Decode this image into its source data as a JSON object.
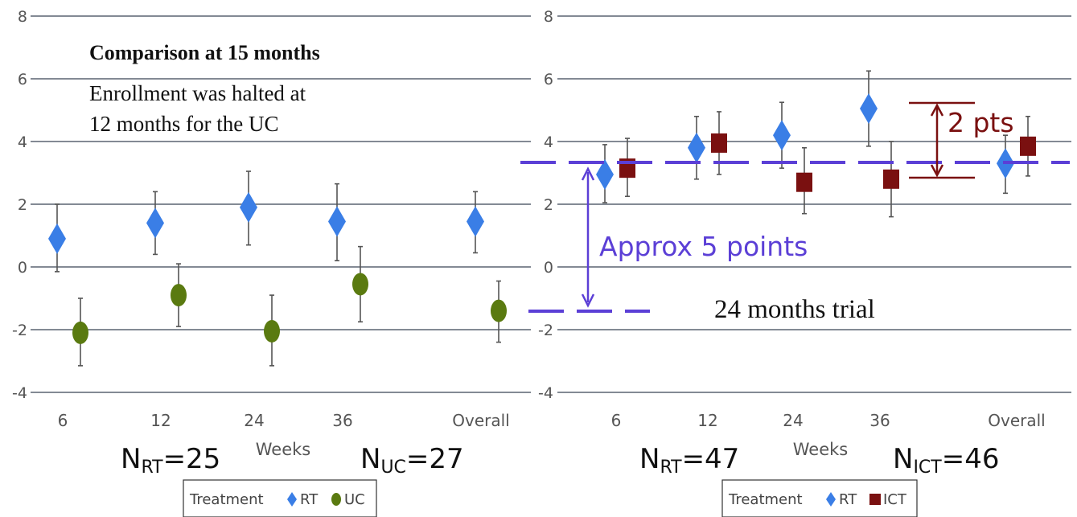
{
  "chart_data": [
    {
      "type": "scatter",
      "panel": "left",
      "categories": [
        "6",
        "12",
        "24",
        "36",
        "Overall"
      ],
      "xlabel": "Weeks",
      "ylim": [
        -4,
        8
      ],
      "yticks": [
        "8",
        "6",
        "4",
        "2",
        "0",
        "-2",
        "-4"
      ],
      "grid": true,
      "series": [
        {
          "name": "RT",
          "marker": "diamond",
          "color": "#3a7ee6",
          "values": [
            0.9,
            1.4,
            1.9,
            1.45,
            1.45
          ],
          "lower": [
            -0.15,
            0.4,
            0.7,
            0.2,
            0.45
          ],
          "upper": [
            2.0,
            2.4,
            3.05,
            2.65,
            2.4
          ]
        },
        {
          "name": "UC",
          "marker": "ellipse",
          "color": "#5a7a10",
          "values": [
            -2.1,
            -0.9,
            -2.05,
            -0.55,
            -1.4
          ],
          "lower": [
            -3.15,
            -1.9,
            -3.15,
            -1.75,
            -2.4
          ],
          "upper": [
            -1.0,
            0.1,
            -0.9,
            0.65,
            -0.45
          ]
        }
      ],
      "legend": {
        "title": "Treatment",
        "position": "bottom"
      },
      "annotations": {
        "heading": "Comparison at 15 months",
        "note_line1": "Enrollment was halted at",
        "note_line2": "12 months for the UC"
      },
      "n_labels": [
        {
          "main": "N",
          "sub": "RT",
          "value": "=25"
        },
        {
          "main": "N",
          "sub": "UC",
          "value": "=27"
        }
      ]
    },
    {
      "type": "scatter",
      "panel": "right",
      "categories": [
        "6",
        "12",
        "24",
        "36",
        "Overall"
      ],
      "xlabel": "Weeks",
      "ylim": [
        -4,
        8
      ],
      "yticks": [
        "8",
        "6",
        "4",
        "2",
        "0",
        "-2",
        "-4"
      ],
      "grid": true,
      "series": [
        {
          "name": "RT",
          "marker": "diamond",
          "color": "#3a7ee6",
          "values": [
            2.95,
            3.8,
            4.2,
            5.05,
            3.3
          ],
          "lower": [
            2.05,
            2.8,
            3.15,
            3.85,
            2.35
          ],
          "upper": [
            3.9,
            4.8,
            5.25,
            6.25,
            4.2
          ]
        },
        {
          "name": "ICT",
          "marker": "square",
          "color": "#7a1010",
          "values": [
            3.15,
            3.95,
            2.7,
            2.8,
            3.85
          ],
          "lower": [
            2.25,
            2.95,
            1.7,
            1.6,
            2.9
          ],
          "upper": [
            4.1,
            4.95,
            3.8,
            4.0,
            4.8
          ]
        }
      ],
      "legend": {
        "title": "Treatment",
        "position": "bottom"
      },
      "annotations": {
        "approx": "Approx 5 points",
        "trial": "24 months trial",
        "pts": "2 pts"
      },
      "n_labels": [
        {
          "main": "N",
          "sub": "RT",
          "value": "=47"
        },
        {
          "main": "N",
          "sub": "ICT",
          "value": "=46"
        }
      ]
    }
  ],
  "colors": {
    "rt": "#3a7ee6",
    "uc": "#5a7a10",
    "ict": "#7a1010",
    "annotation_purple": "#5b3fd6",
    "annotation_red": "#7a1010"
  }
}
